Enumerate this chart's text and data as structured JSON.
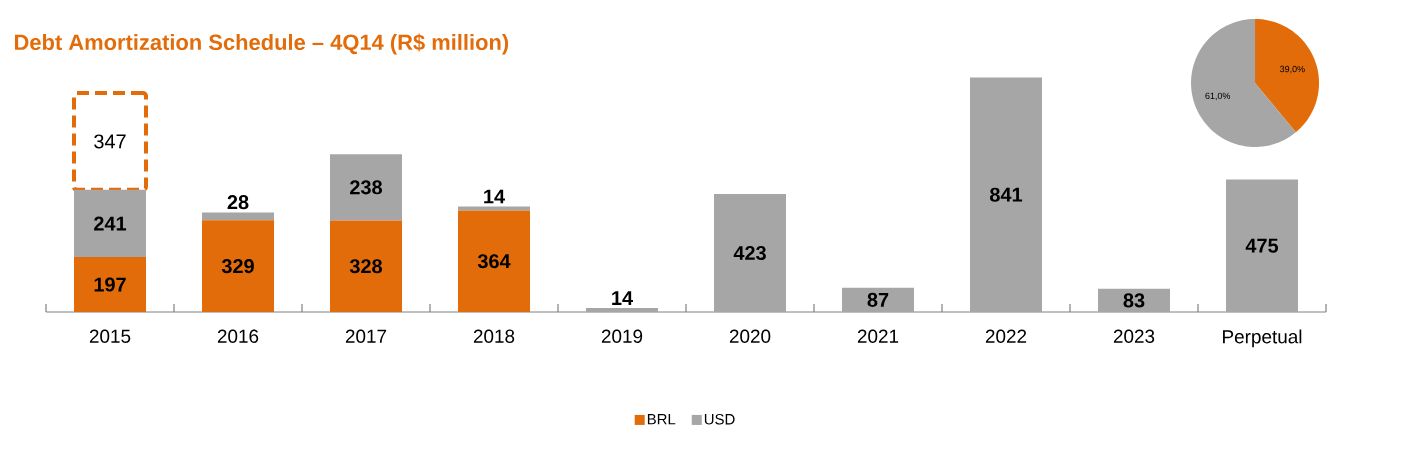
{
  "chart_data": [
    {
      "type": "bar",
      "title": "Debt Amortization Schedule – 4Q14 (R$ million)",
      "stacked": true,
      "data_labels": true,
      "legend": "bottom",
      "categories": [
        "2015",
        "2016",
        "2017",
        "2018",
        "2019",
        "2020",
        "2021",
        "2022",
        "2023",
        "Perpetual"
      ],
      "series": [
        {
          "name": "BRL",
          "color": "#e36c0a",
          "values": [
            197,
            329,
            328,
            364,
            null,
            null,
            null,
            null,
            null,
            null
          ]
        },
        {
          "name": "USD",
          "color": "#a6a6a6",
          "values": [
            241,
            28,
            238,
            14,
            14,
            423,
            87,
            841,
            83,
            475
          ]
        },
        {
          "color": "#e36c0a",
          "line_style": "dashed",
          "values": [
            347,
            null,
            null,
            null,
            null,
            null,
            null,
            null,
            null,
            null
          ]
        }
      ]
    },
    {
      "type": "pie",
      "categories": [
        null,
        null
      ],
      "values": [
        39.0,
        61.0
      ],
      "colors": [
        "#e36c0a",
        "#a6a6a6"
      ],
      "value_labels": [
        "39,0%",
        "61,0%"
      ]
    }
  ]
}
